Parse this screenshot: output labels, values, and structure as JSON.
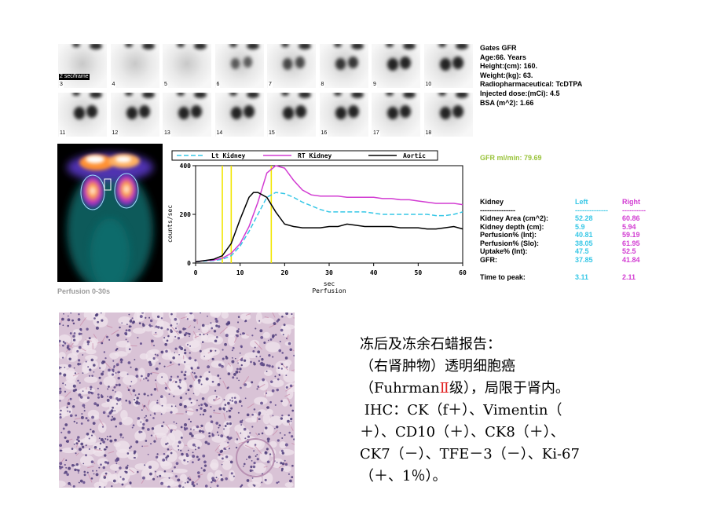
{
  "frame_sequence": {
    "rate_label": "2 sec/frame",
    "frame_numbers": [
      "3",
      "4",
      "5",
      "6",
      "7",
      "8",
      "9",
      "10",
      "11",
      "12",
      "13",
      "14",
      "15",
      "16",
      "17",
      "18"
    ]
  },
  "patient_info": {
    "lines": [
      "Gates GFR",
      "Age:66. Years",
      "Height:(cm): 160.",
      "Weight:(kg): 63.",
      "Radiopharmaceutical: TcDTPA",
      "Injected dose:(mCi): 4.5",
      "BSA (m^2): 1.66"
    ]
  },
  "perfusion_image": {
    "label": "Perfusion 0-30s"
  },
  "gfr_summary": "GFR ml/min: 79.69",
  "kidney_table": {
    "header": {
      "label": "Kidney",
      "left": "Left",
      "right": "Right"
    },
    "separator": {
      "label": "---------------",
      "left": "--------------",
      "right": "----------"
    },
    "rows": [
      {
        "label": "Kidney Area (cm^2):",
        "left": "52.28",
        "right": "60.86"
      },
      {
        "label": "Kidney depth (cm):",
        "left": "5.9",
        "right": "5.94"
      },
      {
        "label": "Perfusion% (Int):",
        "left": "40.81",
        "right": "59.19"
      },
      {
        "label": "Perfusion% (Slo):",
        "left": "38.05",
        "right": "61.95"
      },
      {
        "label": "Uptake% (Int):",
        "left": "47.5",
        "right": "52.5"
      },
      {
        "label": "GFR:",
        "left": "37.85",
        "right": "41.84"
      }
    ],
    "time_to_peak": {
      "label": "Time to peak:",
      "left": "3.11",
      "right": "2.11"
    }
  },
  "chart_data": {
    "type": "line",
    "title": "",
    "xlabel": "sec",
    "xlabel2": "Perfusion",
    "ylabel": "counts/sec",
    "xlim": [
      0,
      60
    ],
    "ylim": [
      0,
      400
    ],
    "xticks": [
      "0",
      "10",
      "20",
      "30",
      "40",
      "50",
      "60"
    ],
    "yticks": [
      "0",
      "200",
      "400"
    ],
    "markers_x": [
      6,
      8,
      17
    ],
    "series": [
      {
        "name": "Lt Kidney",
        "color": "#36c7e6",
        "dashed": true,
        "x": [
          0,
          2,
          4,
          6,
          8,
          10,
          12,
          14,
          16,
          18,
          20,
          22,
          24,
          26,
          28,
          30,
          32,
          34,
          36,
          38,
          40,
          42,
          44,
          46,
          48,
          50,
          52,
          54,
          56,
          58,
          60
        ],
        "y": [
          5,
          8,
          10,
          15,
          30,
          70,
          130,
          200,
          270,
          290,
          285,
          270,
          250,
          235,
          220,
          210,
          210,
          210,
          210,
          210,
          205,
          200,
          200,
          200,
          200,
          200,
          200,
          195,
          195,
          200,
          210
        ]
      },
      {
        "name": "RT Kidney",
        "color": "#d23cd2",
        "dashed": false,
        "x": [
          0,
          2,
          4,
          6,
          8,
          10,
          12,
          14,
          16,
          18,
          20,
          22,
          24,
          26,
          28,
          30,
          32,
          34,
          36,
          38,
          40,
          42,
          44,
          46,
          48,
          50,
          52,
          54,
          56,
          58,
          60
        ],
        "y": [
          5,
          10,
          12,
          20,
          40,
          80,
          150,
          250,
          370,
          400,
          390,
          340,
          300,
          280,
          275,
          275,
          275,
          270,
          270,
          270,
          270,
          265,
          265,
          260,
          260,
          255,
          250,
          245,
          245,
          245,
          240
        ]
      },
      {
        "name": "Aortic",
        "color": "#000000",
        "dashed": false,
        "x": [
          0,
          2,
          4,
          6,
          8,
          10,
          12,
          13,
          14,
          16,
          18,
          20,
          22,
          24,
          26,
          28,
          30,
          32,
          34,
          36,
          38,
          40,
          42,
          44,
          46,
          48,
          50,
          52,
          54,
          56,
          58,
          60
        ],
        "y": [
          5,
          10,
          15,
          30,
          80,
          180,
          270,
          290,
          290,
          270,
          210,
          160,
          150,
          145,
          145,
          145,
          150,
          150,
          160,
          155,
          150,
          150,
          150,
          150,
          145,
          145,
          145,
          140,
          140,
          145,
          150,
          140
        ]
      }
    ]
  },
  "report": {
    "lines": [
      "冻后及冻余石蜡报告：",
      "（右肾肿物）透明细胞癌"
    ],
    "line3_pre": "（Fuhrman",
    "line3_grade": "Ⅱ",
    "line3_post": "级），局限于肾内。",
    "lines_rest": [
      " IHC：CK（f＋）、Vimentin（",
      "＋）、CD10（＋）、CK8（＋）、",
      "CK7（－）、TFE－3（－）、Ki-67",
      "（＋、1％）。"
    ]
  },
  "colors": {
    "lt_kidney": "#36c7e6",
    "rt_kidney": "#d23cd2",
    "aortic": "#000000",
    "gfr_green": "#99c33a",
    "marker_yellow": "#f2e600",
    "grade_red": "#e02020"
  }
}
